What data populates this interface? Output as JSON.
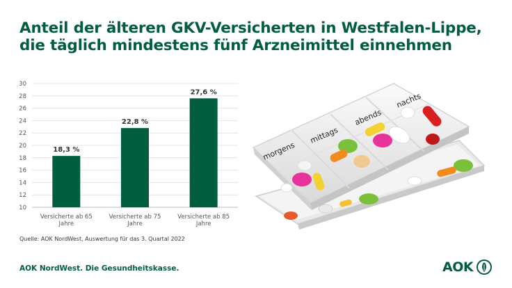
{
  "title": {
    "line1": "Anteil der älteren GKV-Versicherten in Westfalen-Lippe,",
    "line2": "die täglich mindestens fünf Arzneimittel einnehmen"
  },
  "chart_data": {
    "type": "bar",
    "categories": [
      [
        "Versicherte ab 65",
        "Jahre"
      ],
      [
        "Versicherte ab 75",
        "Jahre"
      ],
      [
        "Versicherte ab 85",
        "Jahre"
      ]
    ],
    "values": [
      18.3,
      22.8,
      27.6
    ],
    "value_labels": [
      "18,3 %",
      "22,8 %",
      "27,6 %"
    ],
    "yticks": [
      "10",
      "12",
      "14",
      "16",
      "18",
      "20",
      "22",
      "24",
      "26",
      "28",
      "30"
    ],
    "ylim": [
      10,
      30
    ],
    "grid": true,
    "bar_color": "#005e3f"
  },
  "pillbox": {
    "compartments": [
      "morgens",
      "mittags",
      "abends",
      "nachts"
    ]
  },
  "source": "Quelle: AOK NordWest, Auswertung für das 3. Quartal 2022",
  "footer": {
    "tagline": "AOK NordWest. Die Gesundheitskasse.",
    "logo": "AOK"
  },
  "colors": {
    "brand": "#005e3f"
  }
}
